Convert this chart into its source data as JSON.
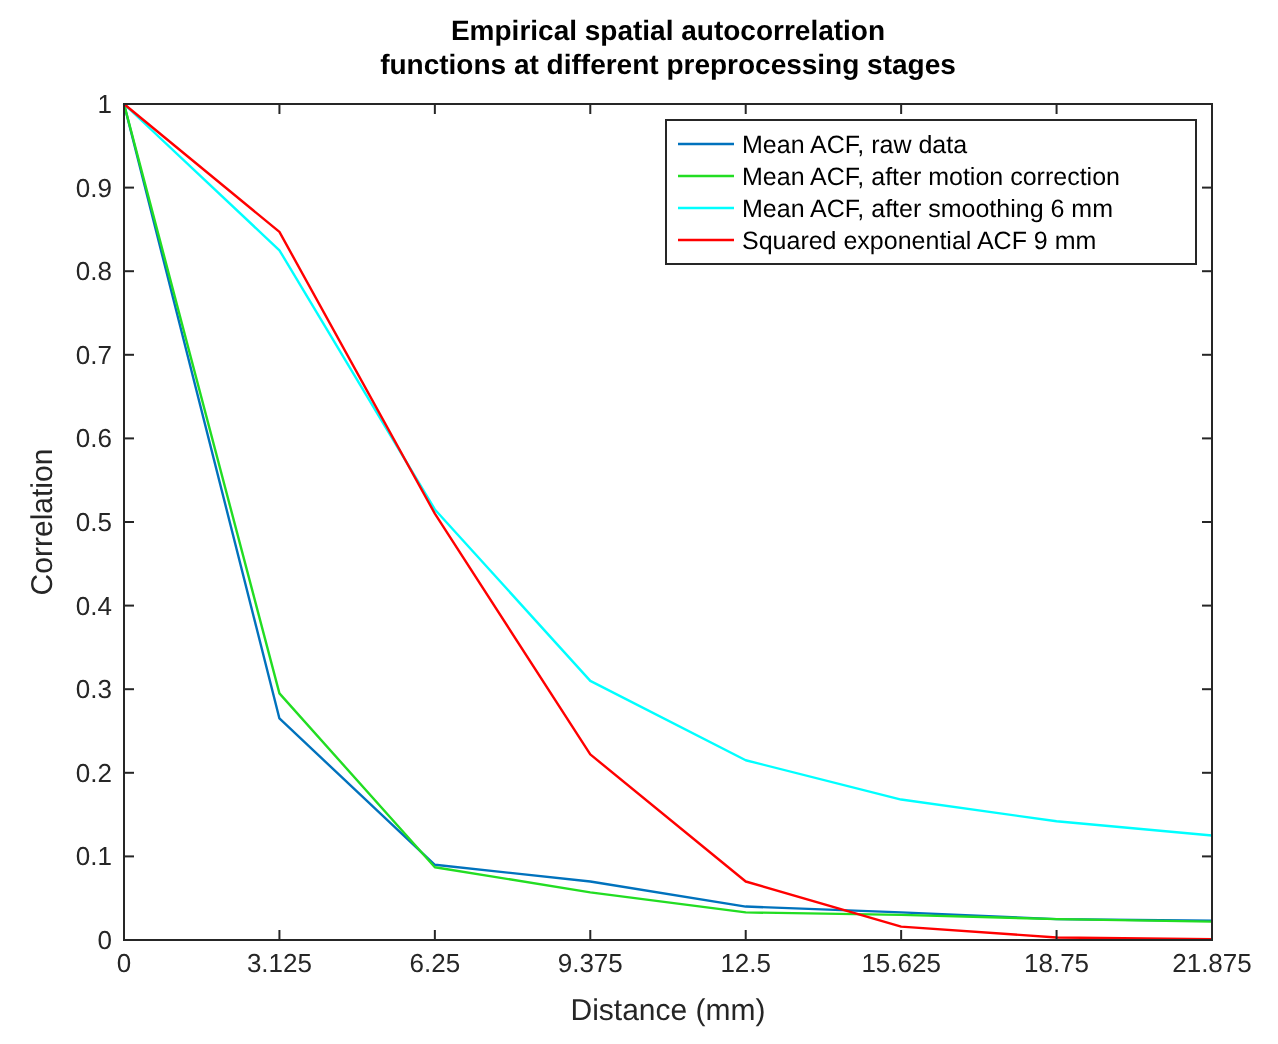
{
  "chart_data": {
    "type": "line",
    "title": "Empirical spatial autocorrelation\nfunctions at different preprocessing stages",
    "xlabel": "Distance (mm)",
    "ylabel": "Correlation",
    "x": [
      0,
      3.125,
      6.25,
      9.375,
      12.5,
      15.625,
      18.75,
      21.875
    ],
    "xlim": [
      0,
      21.875
    ],
    "xticks": [
      0,
      3.125,
      6.25,
      9.375,
      12.5,
      15.625,
      18.75,
      21.875
    ],
    "ylim": [
      0,
      1
    ],
    "yticks": [
      0,
      0.1,
      0.2,
      0.3,
      0.4,
      0.5,
      0.6,
      0.7,
      0.8,
      0.9,
      1
    ],
    "series": [
      {
        "name": "Mean ACF, raw data",
        "color": "#0072bd",
        "values": [
          1,
          0.265,
          0.09,
          0.07,
          0.04,
          0.033,
          0.025,
          0.023
        ]
      },
      {
        "name": "Mean ACF, after motion correction",
        "color": "#22dd22",
        "values": [
          1,
          0.295,
          0.087,
          0.057,
          0.033,
          0.03,
          0.025,
          0.022
        ]
      },
      {
        "name": "Mean ACF, after smoothing 6 mm",
        "color": "#00ffff",
        "values": [
          1,
          0.825,
          0.515,
          0.31,
          0.215,
          0.168,
          0.142,
          0.125
        ]
      },
      {
        "name": "Squared exponential ACF 9 mm",
        "color": "#ff0000",
        "values": [
          1,
          0.847,
          0.51,
          0.222,
          0.07,
          0.016,
          0.003,
          0.001
        ]
      }
    ],
    "legend": "top right",
    "grid": false,
    "marker": "none",
    "line_style": "solid"
  }
}
